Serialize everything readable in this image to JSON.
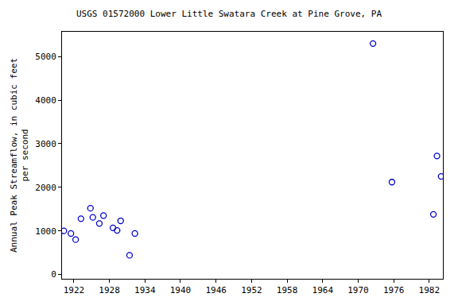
{
  "chart_data": {
    "type": "scatter",
    "title": "USGS 01572000 Lower Little Swatara Creek at Pine Grove, PA",
    "y_label": "Annual Peak Streamflow, in cubic feet\nper second",
    "x": [
      1920.3,
      1921.5,
      1922.3,
      1923.2,
      1924.8,
      1925.2,
      1926.3,
      1927.0,
      1928.6,
      1929.3,
      1929.9,
      1931.4,
      1932.3,
      1972.5,
      1975.7,
      1982.7,
      1983.3,
      1984.0
    ],
    "values": [
      1000,
      940,
      800,
      1280,
      1520,
      1310,
      1170,
      1350,
      1070,
      1010,
      1230,
      440,
      940,
      5300,
      2120,
      1380,
      2720,
      2250
    ],
    "color": "#0000cc",
    "marker": "open-circle",
    "xlim": [
      1920,
      1984.3
    ],
    "xticks": [
      1922,
      1928,
      1934,
      1940,
      1946,
      1952,
      1958,
      1964,
      1970,
      1976,
      1982
    ],
    "ylim": [
      -100,
      5570
    ],
    "yticks": [
      0,
      1000,
      2000,
      3000,
      4000,
      5000
    ],
    "grid": false
  }
}
